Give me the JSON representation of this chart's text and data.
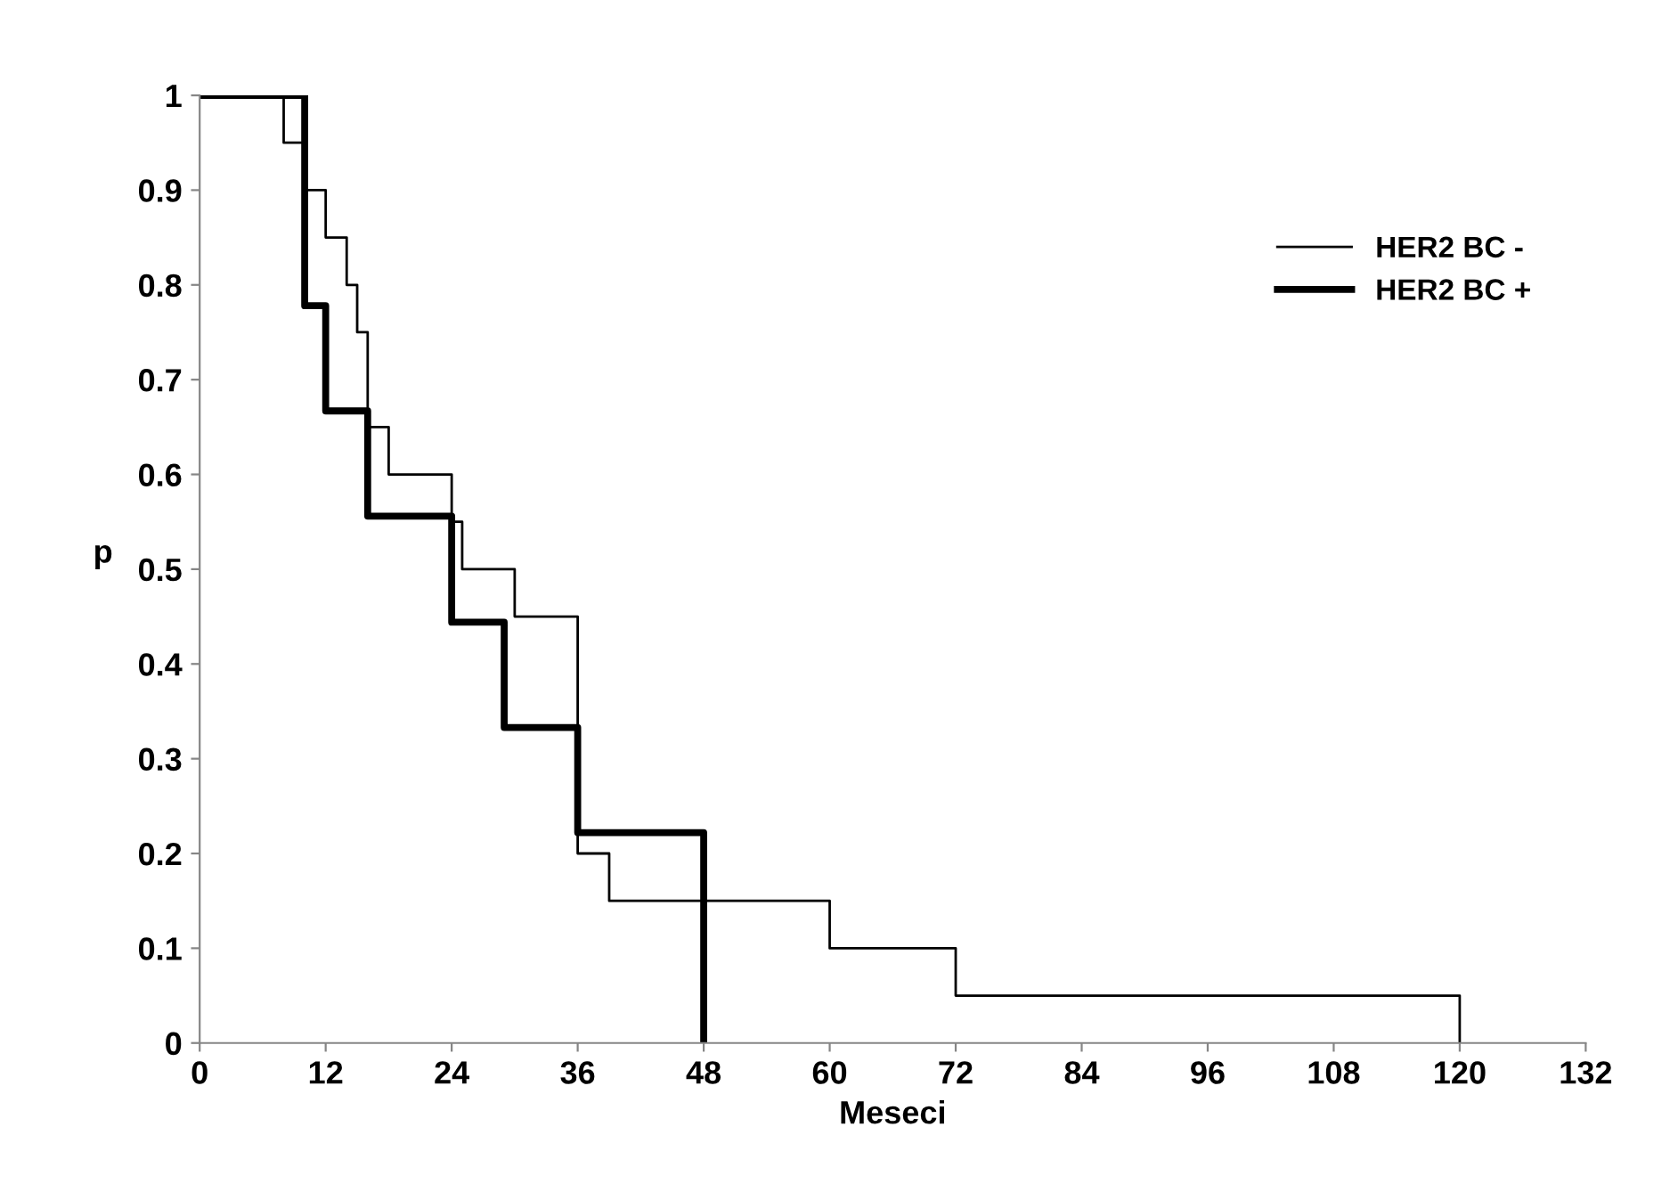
{
  "chart_data": {
    "type": "step",
    "xlabel": "Meseci",
    "ylabel": "p",
    "xlim": [
      0,
      132
    ],
    "xticks": [
      0,
      12,
      24,
      36,
      48,
      60,
      72,
      84,
      96,
      108,
      120,
      132
    ],
    "ylim": [
      0,
      1
    ],
    "yticks": [
      0,
      0.1,
      0.2,
      0.3,
      0.4,
      0.5,
      0.6,
      0.7,
      0.8,
      0.9,
      1
    ],
    "grid": false,
    "legend": "top right",
    "marker": "none",
    "line_style": "solid",
    "series": [
      {
        "name": "HER2 BC -",
        "color": "#000000",
        "x": [
          0,
          8,
          10,
          12,
          14,
          15,
          16,
          18,
          24,
          25,
          30,
          36,
          39,
          60,
          72,
          120,
          120
        ],
        "values": [
          1,
          0.95,
          0.9,
          0.85,
          0.8,
          0.75,
          0.65,
          0.6,
          0.55,
          0.5,
          0.45,
          0.2,
          0.15,
          0.1,
          0.05,
          0.05,
          0
        ]
      },
      {
        "name": "HER2 BC +",
        "color": "#000000",
        "x": [
          0,
          10,
          12,
          16,
          24,
          29,
          36,
          48,
          48
        ],
        "values": [
          1,
          0.778,
          0.667,
          0.556,
          0.444,
          0.333,
          0.222,
          0.222,
          0
        ]
      }
    ]
  }
}
